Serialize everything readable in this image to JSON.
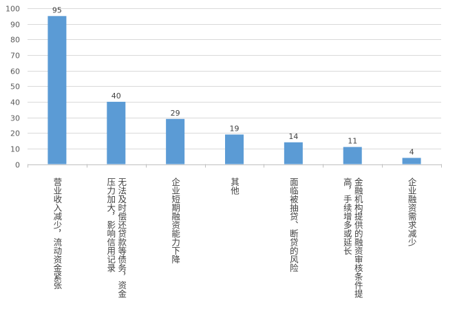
{
  "chart_data": {
    "type": "bar",
    "categories": [
      "营业收入减少，流动资金紧张",
      "无法及时偿还贷款等债务，资金压力加大，影响信用记录",
      "企业短期融资能力下降",
      "其他",
      "面临被抽贷、断贷的风险",
      "金融机构提供的融资审核条件提高，手续增多或延长",
      "企业融资需求减少"
    ],
    "label_lines": [
      [
        "营业收入减少，流动资金紧张"
      ],
      [
        "无法及时偿还贷款等债务，资金",
        "压力加大，影响信用记录"
      ],
      [
        "企业短期融资能力下降"
      ],
      [
        "其他"
      ],
      [
        "面临被抽贷、断贷的风险"
      ],
      [
        "金融机构提供的融资审核条件提",
        "高，手续增多或延长"
      ],
      [
        "企业融资需求减少"
      ]
    ],
    "values": [
      95,
      40,
      29,
      19,
      14,
      11,
      4
    ],
    "ylim": [
      0,
      100
    ],
    "yticks": [
      0,
      10,
      20,
      30,
      40,
      50,
      60,
      70,
      80,
      90,
      100
    ],
    "grid": true,
    "bar_color": "#5b9bd5",
    "grid_color": "#d9d9d9",
    "title": "",
    "xlabel": "",
    "ylabel": ""
  }
}
